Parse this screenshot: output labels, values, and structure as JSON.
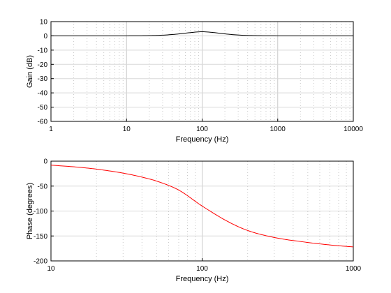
{
  "chart_data": [
    {
      "type": "line",
      "xlabel": "Frequency (Hz)",
      "ylabel": "Gain (dB)",
      "xscale": "log",
      "xlim": [
        1,
        10000
      ],
      "ylim": [
        -60,
        10
      ],
      "xticks": [
        "1",
        "10",
        "100",
        "1000",
        "10000"
      ],
      "yticks": [
        "10",
        "0",
        "-10",
        "-20",
        "-30",
        "-40",
        "-50",
        "-60"
      ],
      "grid": true,
      "series": [
        {
          "color": "#000000",
          "x": [
            1,
            5,
            10,
            20,
            30,
            50,
            70,
            100,
            150,
            200,
            300,
            500,
            1000,
            10000
          ],
          "values": [
            0,
            0.01,
            0.05,
            0.2,
            0.5,
            1.4,
            2.3,
            2.9,
            2.2,
            1.4,
            0.6,
            0.2,
            0.05,
            0
          ]
        }
      ]
    },
    {
      "type": "line",
      "xlabel": "Frequency (Hz)",
      "ylabel": "Phase (degrees)",
      "xscale": "log",
      "xlim": [
        10,
        1000
      ],
      "ylim": [
        -200,
        0
      ],
      "xticks": [
        "10",
        "100",
        "1000"
      ],
      "yticks": [
        "0",
        "-50",
        "-100",
        "-150",
        "-200"
      ],
      "grid": true,
      "series": [
        {
          "color": "#ff0000",
          "x": [
            10,
            15,
            20,
            30,
            40,
            50,
            70,
            100,
            150,
            200,
            300,
            500,
            700,
            1000
          ],
          "values": [
            -8,
            -12,
            -16,
            -24,
            -32,
            -40,
            -58,
            -90,
            -122,
            -139,
            -153,
            -163,
            -168,
            -172
          ]
        }
      ]
    }
  ]
}
